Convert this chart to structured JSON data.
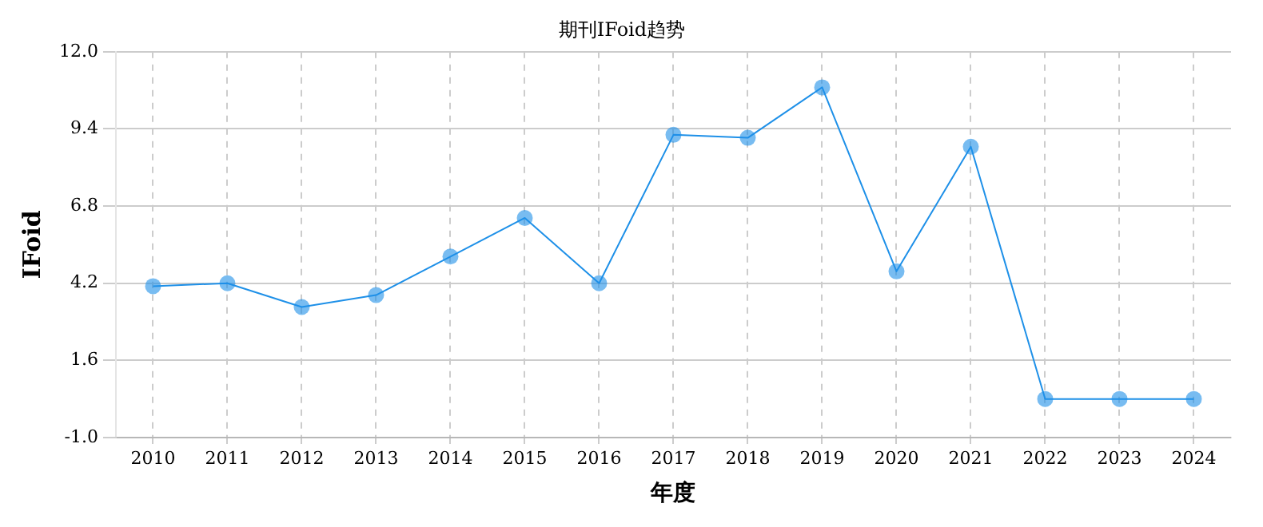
{
  "chart_data": {
    "type": "line",
    "title": "期刊IFoid趋势",
    "xlabel": "年度",
    "ylabel": "IFoid",
    "categories": [
      "2010",
      "2011",
      "2012",
      "2013",
      "2014",
      "2015",
      "2016",
      "2017",
      "2018",
      "2019",
      "2020",
      "2021",
      "2022",
      "2023",
      "2024"
    ],
    "series": [
      {
        "color": "#1e90e8",
        "values": [
          4.1,
          4.2,
          3.4,
          3.8,
          5.1,
          6.4,
          4.2,
          9.2,
          9.1,
          10.8,
          4.6,
          8.8,
          0.3,
          0.3,
          0.3
        ]
      }
    ],
    "ylim": [
      -1.0,
      12.0
    ],
    "yticks": [
      {
        "value": -1.0,
        "label": "-1.0"
      },
      {
        "value": 1.6,
        "label": "1.6"
      },
      {
        "value": 4.2,
        "label": "4.2"
      },
      {
        "value": 6.8,
        "label": "6.8"
      },
      {
        "value": 9.4,
        "label": "9.4"
      },
      {
        "value": 12.0,
        "label": "12.0"
      }
    ],
    "grid": true,
    "legend": false,
    "marker": "circle",
    "line_style": "solid"
  }
}
